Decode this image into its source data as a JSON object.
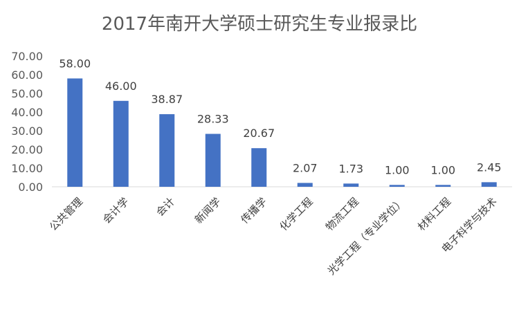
{
  "chart_data": {
    "type": "bar",
    "title": "2017年南开大学硕士研究生专业报录比",
    "categories": [
      "公共管理",
      "会计学",
      "会计",
      "新闻学",
      "传播学",
      "化学工程",
      "物流工程",
      "光学工程（专业学位）",
      "材料工程",
      "电子科学与技术"
    ],
    "values": [
      58.0,
      46.0,
      38.87,
      28.33,
      20.67,
      2.07,
      1.73,
      1.0,
      1.0,
      2.45
    ],
    "value_labels": [
      "58.00",
      "46.00",
      "38.87",
      "28.33",
      "20.67",
      "2.07",
      "1.73",
      "1.00",
      "1.00",
      "2.45"
    ],
    "yticks": [
      "0.00",
      "10.00",
      "20.00",
      "30.00",
      "40.00",
      "50.00",
      "60.00",
      "70.00"
    ],
    "ylim": [
      0,
      70
    ],
    "grid": false,
    "xlabel": "",
    "ylabel": "",
    "colors": {
      "bar": "#4472C4",
      "axis": "#D9D9D9"
    }
  }
}
